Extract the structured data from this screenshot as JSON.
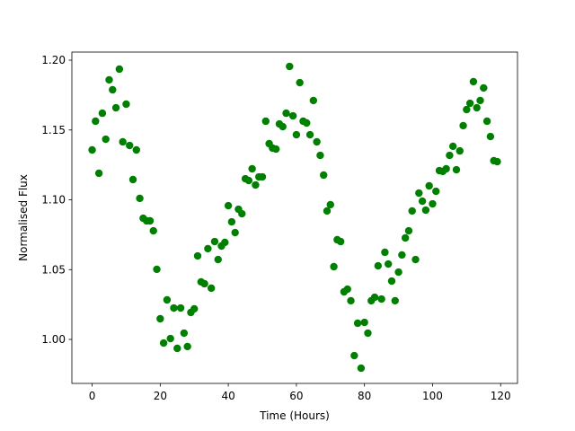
{
  "chart_data": {
    "type": "scatter",
    "xlabel": "Time (Hours)",
    "ylabel": "Normalised Flux",
    "color": "#008000",
    "x": [
      0,
      1,
      2,
      3,
      4,
      5,
      6,
      7,
      8,
      9,
      10,
      11,
      12,
      13,
      14,
      15,
      16,
      17,
      18,
      19,
      20,
      21,
      22,
      23,
      24,
      25,
      26,
      27,
      28,
      29,
      30,
      31,
      32,
      33,
      34,
      35,
      36,
      37,
      38,
      39,
      40,
      41,
      42,
      43,
      44,
      45,
      46,
      47,
      48,
      49,
      50,
      51,
      52,
      53,
      54,
      55,
      56,
      57,
      58,
      59,
      60,
      61,
      62,
      63,
      64,
      65,
      66,
      67,
      68,
      69,
      70,
      71,
      72,
      73,
      74,
      75,
      76,
      77,
      78,
      79,
      80,
      81,
      82,
      83,
      84,
      85,
      86,
      87,
      88,
      89,
      90,
      91,
      92,
      93,
      94,
      95,
      96,
      97,
      98,
      99,
      100,
      101,
      102,
      103,
      104,
      105,
      106,
      107,
      108,
      109,
      110,
      111,
      112,
      113,
      114,
      115,
      116,
      117,
      118,
      119
    ],
    "values": [
      1.1357,
      1.1563,
      1.119,
      1.162,
      1.1434,
      1.1859,
      1.1788,
      1.1659,
      1.1936,
      1.1415,
      1.1685,
      1.1389,
      1.1145,
      1.1357,
      1.101,
      1.0868,
      1.0849,
      1.0849,
      1.0778,
      1.0502,
      1.0148,
      0.9974,
      1.0283,
      1.0006,
      1.0225,
      0.9936,
      1.0225,
      1.0045,
      0.9949,
      1.0193,
      1.0219,
      1.0598,
      1.0412,
      1.0399,
      1.065,
      1.0367,
      1.0701,
      1.0572,
      1.0669,
      1.0695,
      1.0958,
      1.0842,
      1.0765,
      1.0932,
      1.09,
      1.1151,
      1.1138,
      1.1222,
      1.1106,
      1.1164,
      1.1164,
      1.1563,
      1.1402,
      1.137,
      1.1363,
      1.1543,
      1.1524,
      1.162,
      1.1955,
      1.1601,
      1.1466,
      1.1839,
      1.1563,
      1.155,
      1.1466,
      1.1711,
      1.1415,
      1.1318,
      1.1177,
      1.092,
      1.0965,
      1.0521,
      1.0714,
      1.0701,
      1.0341,
      1.036,
      1.0277,
      0.9884,
      1.0116,
      0.9794,
      1.0122,
      1.0045,
      1.0277,
      1.0302,
      1.0527,
      1.0289,
      1.0624,
      1.054,
      1.0418,
      1.0277,
      1.0482,
      1.0605,
      1.0727,
      1.0778,
      1.092,
      1.0572,
      1.1048,
      1.099,
      1.0926,
      1.11,
      1.0971,
      1.1061,
      1.1209,
      1.1203,
      1.1222,
      1.1318,
      1.1383,
      1.1215,
      1.135,
      1.1531,
      1.1646,
      1.1691,
      1.1846,
      1.1659,
      1.1711,
      1.1801,
      1.1563,
      1.1453,
      1.128,
      1.1273
    ],
    "xlim": [
      -5.95,
      124.95
    ],
    "xticks": [
      0,
      20,
      40,
      60,
      80,
      100,
      120
    ],
    "ylim": [
      0.9685,
      1.2058
    ],
    "yticks": [
      {
        "value": 1,
        "label": "1.00"
      },
      1.05,
      {
        "value": 1.1,
        "label": "1.10"
      },
      1.15,
      {
        "value": 1.2,
        "label": "1.20"
      }
    ],
    "grid": false
  }
}
